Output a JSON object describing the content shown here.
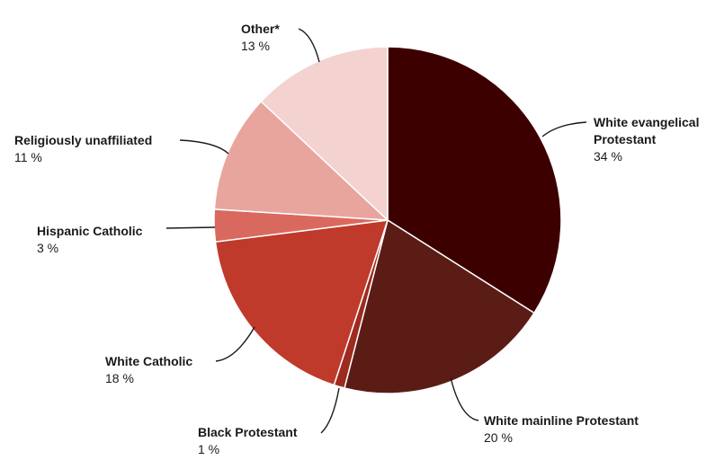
{
  "chart_data": {
    "type": "pie",
    "unit": "%",
    "slices": [
      {
        "name": "White evangelical Protestant",
        "lines": [
          "White evangelical",
          "Protestant"
        ],
        "value": 34,
        "value_label": "34 %",
        "color": "#3d0000"
      },
      {
        "name": "White mainline Protestant",
        "lines": [
          "White mainline Protestant"
        ],
        "value": 20,
        "value_label": "20 %",
        "color": "#5c1c16"
      },
      {
        "name": "Black Protestant",
        "lines": [
          "Black Protestant"
        ],
        "value": 1,
        "value_label": "1 %",
        "color": "#9e2a20"
      },
      {
        "name": "White Catholic",
        "lines": [
          "White Catholic"
        ],
        "value": 18,
        "value_label": "18 %",
        "color": "#bf3a2a"
      },
      {
        "name": "Hispanic Catholic",
        "lines": [
          "Hispanic Catholic"
        ],
        "value": 3,
        "value_label": "3 %",
        "color": "#d9695e"
      },
      {
        "name": "Religiously unaffiliated",
        "lines": [
          "Religiously unaffiliated"
        ],
        "value": 11,
        "value_label": "11 %",
        "color": "#e8a59e"
      },
      {
        "name": "Other*",
        "lines": [
          "Other*"
        ],
        "value": 13,
        "value_label": "13 %",
        "color": "#f3d2cf"
      }
    ]
  }
}
